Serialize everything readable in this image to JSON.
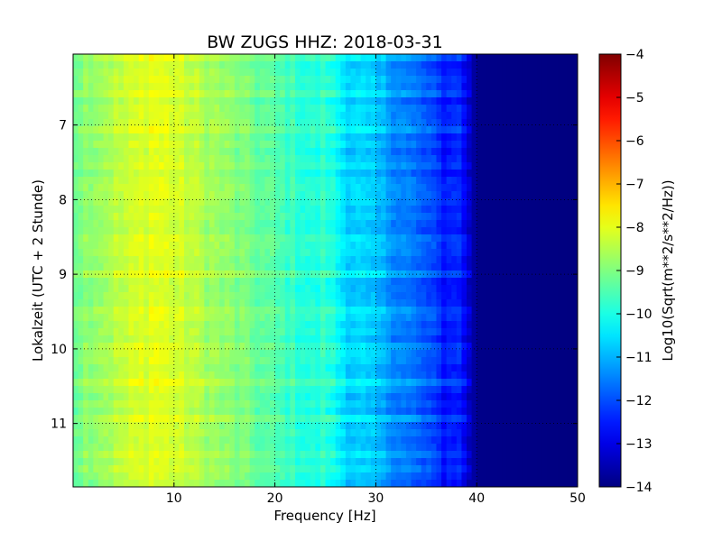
{
  "chart_data": {
    "type": "heatmap",
    "title": "BW ZUGS HHZ: 2018-03-31",
    "xlabel": "Frequency [Hz]",
    "ylabel": "Lokalzeit (UTC + 2 Stunde)",
    "xlim": [
      0,
      50
    ],
    "ylim": [
      11.85,
      6.05
    ],
    "y_inverted": true,
    "xticks": [
      10,
      20,
      30,
      40,
      50
    ],
    "yticks": [
      7,
      8,
      9,
      10,
      11
    ],
    "grid": true,
    "colormap": "jet",
    "colorbar": {
      "label": "Log10(Sqrt(m**2/s**2/Hz))",
      "range": [
        -14,
        -4
      ],
      "ticks": [
        -4,
        -5,
        -6,
        -7,
        -8,
        -9,
        -10,
        -11,
        -12,
        -13,
        -14
      ]
    },
    "spectrum_profile": {
      "frequency_hz": [
        0,
        1,
        5,
        8,
        10,
        13,
        16,
        20,
        24,
        25,
        27,
        30,
        33,
        35,
        37,
        38,
        39,
        40,
        50
      ],
      "log_amplitude": [
        -9.2,
        -8.9,
        -8.4,
        -8.0,
        -8.2,
        -8.6,
        -9.0,
        -9.5,
        -10.0,
        -9.8,
        -10.6,
        -11.0,
        -11.6,
        -12.0,
        -12.6,
        -12.3,
        -13.0,
        -13.9,
        -14.0
      ]
    }
  }
}
